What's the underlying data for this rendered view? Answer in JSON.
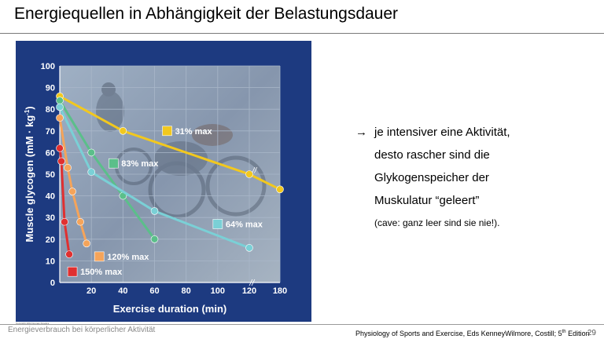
{
  "slide": {
    "title": "Energiequellen in Abhängigkeit der Belastungsdauer",
    "footer_left": "Energieverbrauch bei körperlicher Aktivität",
    "footer_right_prefix": "Physiology of Sports and Exercise, Eds KenneyWilmore, Costill; 5",
    "footer_right_sup": "th",
    "footer_right_suffix": " Edition",
    "page_number": "29",
    "copyright": "Copyright 2012 Human Kinetics"
  },
  "bullets": {
    "arrow": "→",
    "line1": "je intensiver eine Aktivität,",
    "line2": "desto rascher sind die",
    "line3": "Glykogenspeicher der",
    "line4": "Muskulatur “geleert”",
    "line5": "(cave:  ganz leer sind sie nie!)."
  },
  "colors": {
    "frame": "#1d3a80",
    "plot_bg": "#8f9fb5",
    "grid": "#a9b7c9"
  },
  "chart_data": {
    "type": "line",
    "title": "",
    "xlabel": "Exercise duration (min)",
    "ylabel": "Muscle glycogen (mM · kg-1)",
    "ylabel_main": "Muscle glycogen (mM · kg",
    "ylabel_sup": "-1",
    "ylabel_close": ")",
    "xlim": [
      0,
      180
    ],
    "ylim": [
      0,
      100
    ],
    "x_break": "//",
    "x_ticks": [
      {
        "value": 20,
        "label": "20"
      },
      {
        "value": 40,
        "label": "40"
      },
      {
        "value": 60,
        "label": "60"
      },
      {
        "value": 80,
        "label": "80"
      },
      {
        "value": 100,
        "label": "100"
      },
      {
        "value": 120,
        "label": "120"
      },
      {
        "value": 180,
        "label": "180"
      }
    ],
    "y_ticks": [
      0,
      10,
      20,
      30,
      40,
      50,
      60,
      70,
      80,
      90,
      100
    ],
    "grid": true,
    "legend": "inline labels",
    "series": [
      {
        "name": "31% max",
        "color": "#f2c81e",
        "points": [
          [
            0,
            86
          ],
          [
            40,
            70
          ],
          [
            120,
            50
          ],
          [
            180,
            43
          ]
        ],
        "label_anchor": [
          68,
          70
        ]
      },
      {
        "name": "83% max",
        "color": "#5bbf8a",
        "points": [
          [
            0,
            84
          ],
          [
            20,
            60
          ],
          [
            40,
            40
          ],
          [
            60,
            20
          ]
        ],
        "label_anchor": [
          34,
          55
        ]
      },
      {
        "name": "64% max",
        "color": "#7ad0d6",
        "points": [
          [
            0,
            81
          ],
          [
            20,
            51
          ],
          [
            60,
            33
          ],
          [
            120,
            16
          ]
        ],
        "label_anchor": [
          100,
          27
        ]
      },
      {
        "name": "120% max",
        "color": "#f5a45a",
        "points": [
          [
            0,
            76
          ],
          [
            5,
            53
          ],
          [
            8,
            42
          ],
          [
            13,
            28
          ],
          [
            17,
            18
          ]
        ],
        "label_anchor": [
          25,
          12
        ]
      },
      {
        "name": "150% max",
        "color": "#e03030",
        "points": [
          [
            0,
            62
          ],
          [
            1,
            56
          ],
          [
            3,
            28
          ],
          [
            6,
            13
          ]
        ],
        "label_anchor": [
          8,
          5
        ]
      }
    ]
  }
}
